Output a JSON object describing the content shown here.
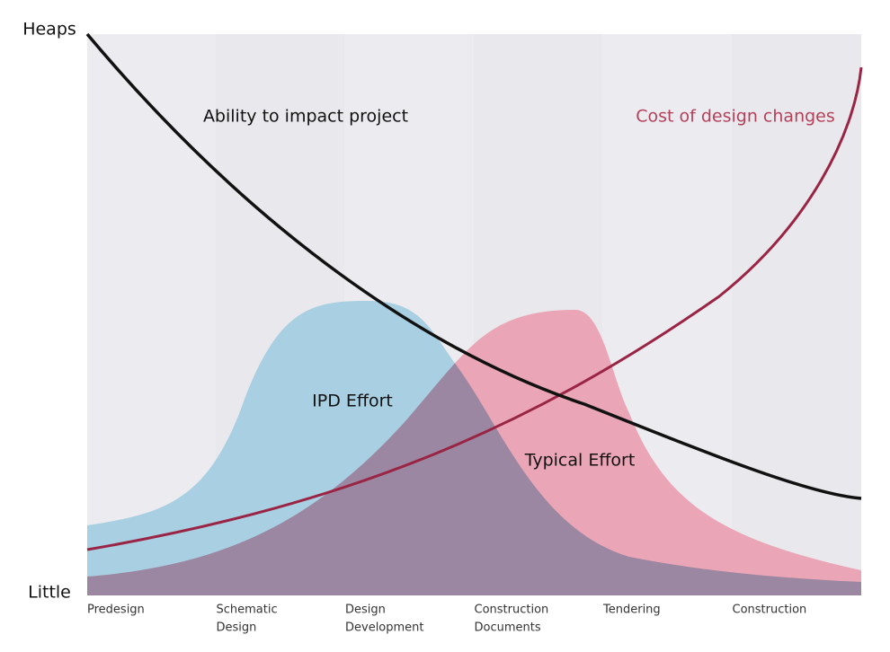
{
  "y_axis": {
    "top": "Heaps",
    "bottom": "Little"
  },
  "labels": {
    "ability": "Ability to impact project",
    "cost": "Cost of design changes",
    "ipd": "IPD Effort",
    "typical": "Typical Effort"
  },
  "phases": [
    [
      "Predesign"
    ],
    [
      "Schematic",
      "Design"
    ],
    [
      "Design",
      "Development"
    ],
    [
      "Construction",
      "Documents"
    ],
    [
      "Tendering"
    ],
    [
      "Construction"
    ]
  ]
}
